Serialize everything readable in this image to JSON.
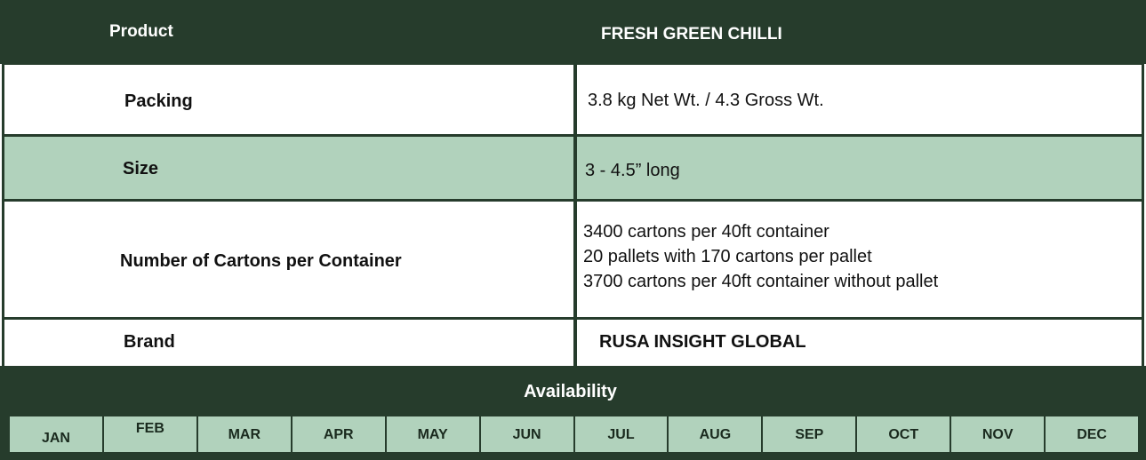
{
  "header": {
    "product_label": "Product",
    "product_value": "FRESH GREEN CHILLI"
  },
  "rows": {
    "packing": {
      "label": "Packing",
      "value": "3.8 kg Net Wt. / 4.3 Gross Wt."
    },
    "size": {
      "label": "Size",
      "value": "3 - 4.5” long"
    },
    "cartons": {
      "label": "Number of Cartons per Container",
      "lines": [
        "3400 cartons per 40ft container",
        "20 pallets with 170 cartons per pallet",
        "3700 cartons per 40ft container without pallet"
      ]
    },
    "brand": {
      "label": "Brand",
      "value": "RUSA INSIGHT GLOBAL"
    }
  },
  "availability": {
    "title": "Availability",
    "months": [
      "JAN",
      "FEB",
      "MAR",
      "APR",
      "MAY",
      "JUN",
      "JUL",
      "AUG",
      "SEP",
      "OCT",
      "NOV",
      "DEC"
    ]
  },
  "colors": {
    "dark_green": "#263c2c",
    "light_green": "#b1d2bc",
    "white": "#ffffff"
  }
}
